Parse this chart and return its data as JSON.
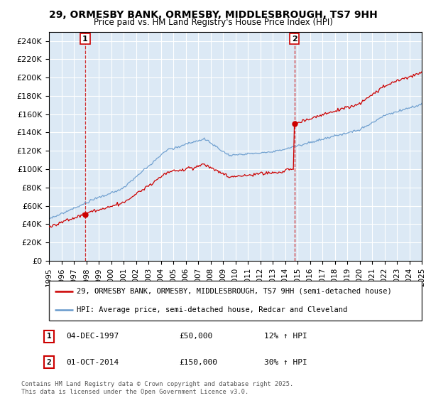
{
  "title": "29, ORMESBY BANK, ORMESBY, MIDDLESBROUGH, TS7 9HH",
  "subtitle": "Price paid vs. HM Land Registry's House Price Index (HPI)",
  "legend_line1": "29, ORMESBY BANK, ORMESBY, MIDDLESBROUGH, TS7 9HH (semi-detached house)",
  "legend_line2": "HPI: Average price, semi-detached house, Redcar and Cleveland",
  "annotation1_label": "1",
  "annotation1_date": "04-DEC-1997",
  "annotation1_price": "£50,000",
  "annotation1_hpi": "12% ↑ HPI",
  "annotation2_label": "2",
  "annotation2_date": "01-OCT-2014",
  "annotation2_price": "£150,000",
  "annotation2_hpi": "30% ↑ HPI",
  "footer": "Contains HM Land Registry data © Crown copyright and database right 2025.\nThis data is licensed under the Open Government Licence v3.0.",
  "sale1_year": 1997.917,
  "sale1_price": 50000,
  "sale2_year": 2014.75,
  "sale2_price": 150000,
  "property_color": "#cc0000",
  "hpi_color": "#6699cc",
  "background_color": "#ffffff",
  "plot_bg_color": "#dce9f5",
  "grid_color": "#ffffff",
  "ylim": [
    0,
    250000
  ],
  "ytick_step": 20000,
  "xstart": 1995,
  "xend": 2025
}
